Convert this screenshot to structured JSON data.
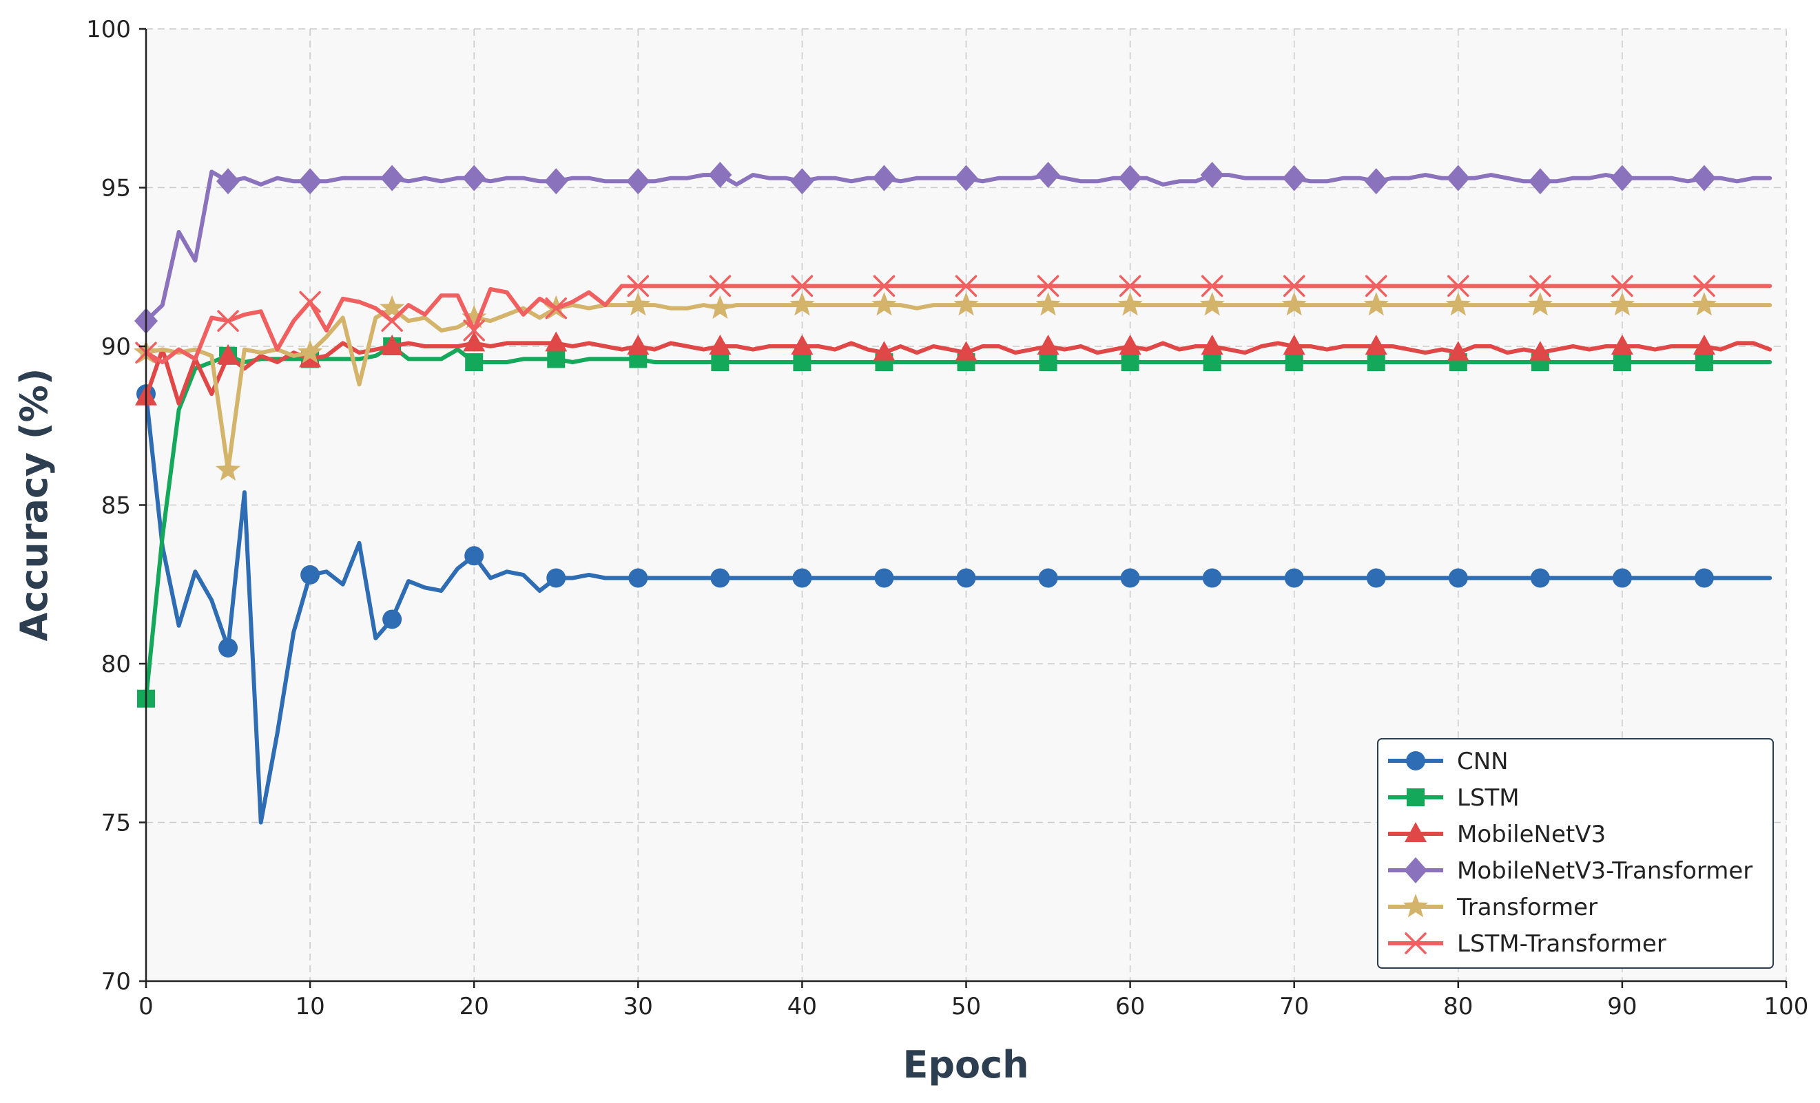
{
  "chart_data": {
    "type": "line",
    "title": "",
    "xlabel": "Epoch",
    "ylabel": "Accuracy (%)",
    "xlim": [
      0,
      100
    ],
    "ylim": [
      70,
      100
    ],
    "xticks": [
      0,
      10,
      20,
      30,
      40,
      50,
      60,
      70,
      80,
      90,
      100
    ],
    "yticks": [
      70,
      75,
      80,
      85,
      90,
      95,
      100
    ],
    "grid": true,
    "legend_position": "bottom-right",
    "marker_every": 5,
    "series": [
      {
        "name": "CNN",
        "color": "#2e6db4",
        "marker": "circle",
        "values": [
          88.5,
          83.7,
          81.2,
          82.9,
          82.0,
          80.5,
          85.4,
          75.0,
          77.8,
          81.0,
          82.8,
          82.9,
          82.5,
          83.8,
          80.8,
          81.4,
          82.6,
          82.4,
          82.3,
          83.0,
          83.4,
          82.7,
          82.9,
          82.8,
          82.3,
          82.7,
          82.7,
          82.8,
          82.7,
          82.7,
          82.7,
          82.7,
          82.7,
          82.7,
          82.7,
          82.7,
          82.7,
          82.7,
          82.7,
          82.7,
          82.7,
          82.7,
          82.7,
          82.7,
          82.7,
          82.7,
          82.7,
          82.7,
          82.7,
          82.7,
          82.7,
          82.7,
          82.7,
          82.7,
          82.7,
          82.7,
          82.7,
          82.7,
          82.7,
          82.7,
          82.7,
          82.7,
          82.7,
          82.7,
          82.7,
          82.7,
          82.7,
          82.7,
          82.7,
          82.7,
          82.7,
          82.7,
          82.7,
          82.7,
          82.7,
          82.7,
          82.7,
          82.7,
          82.7,
          82.7,
          82.7,
          82.7,
          82.7,
          82.7,
          82.7,
          82.7,
          82.7,
          82.7,
          82.7,
          82.7,
          82.7,
          82.7,
          82.7,
          82.7,
          82.7,
          82.7,
          82.7,
          82.7,
          82.7,
          82.7
        ]
      },
      {
        "name": "LSTM",
        "color": "#14a85a",
        "marker": "square",
        "values": [
          78.9,
          84.0,
          88.0,
          89.3,
          89.5,
          89.7,
          89.5,
          89.6,
          89.6,
          89.6,
          89.6,
          89.6,
          89.6,
          89.6,
          89.7,
          90.0,
          89.6,
          89.6,
          89.6,
          89.9,
          89.5,
          89.5,
          89.5,
          89.6,
          89.6,
          89.6,
          89.5,
          89.6,
          89.6,
          89.6,
          89.6,
          89.5,
          89.5,
          89.5,
          89.5,
          89.5,
          89.5,
          89.5,
          89.5,
          89.5,
          89.5,
          89.5,
          89.5,
          89.5,
          89.5,
          89.5,
          89.5,
          89.5,
          89.5,
          89.5,
          89.5,
          89.5,
          89.5,
          89.5,
          89.5,
          89.5,
          89.5,
          89.5,
          89.5,
          89.5,
          89.5,
          89.5,
          89.5,
          89.5,
          89.5,
          89.5,
          89.5,
          89.5,
          89.5,
          89.5,
          89.5,
          89.5,
          89.5,
          89.5,
          89.5,
          89.5,
          89.5,
          89.5,
          89.5,
          89.5,
          89.5,
          89.5,
          89.5,
          89.5,
          89.5,
          89.5,
          89.5,
          89.5,
          89.5,
          89.5,
          89.5,
          89.5,
          89.5,
          89.5,
          89.5,
          89.5,
          89.5,
          89.5,
          89.5,
          89.5
        ]
      },
      {
        "name": "MobileNetV3",
        "color": "#e04848",
        "marker": "triangle",
        "values": [
          88.4,
          89.9,
          88.2,
          89.6,
          88.5,
          89.7,
          89.3,
          89.7,
          89.5,
          89.8,
          89.6,
          89.7,
          90.1,
          89.8,
          89.9,
          90.0,
          90.1,
          90.0,
          90.0,
          90.0,
          90.1,
          90.0,
          90.1,
          90.1,
          90.1,
          90.1,
          90.0,
          90.1,
          90.0,
          89.9,
          90.0,
          89.9,
          90.1,
          90.0,
          89.9,
          90.0,
          90.0,
          89.9,
          90.0,
          90.0,
          90.0,
          90.0,
          89.9,
          90.1,
          89.9,
          89.8,
          90.0,
          89.8,
          90.0,
          89.9,
          89.8,
          90.0,
          90.0,
          89.8,
          89.9,
          90.0,
          89.9,
          90.0,
          89.8,
          89.9,
          90.0,
          89.9,
          90.1,
          89.9,
          90.0,
          90.0,
          89.9,
          89.8,
          90.0,
          90.1,
          90.0,
          90.0,
          89.9,
          90.0,
          90.0,
          90.0,
          90.0,
          89.9,
          89.8,
          89.9,
          89.8,
          90.0,
          90.0,
          89.8,
          89.9,
          89.8,
          89.9,
          90.0,
          89.9,
          90.0,
          90.0,
          90.0,
          89.9,
          90.0,
          90.0,
          90.0,
          89.9,
          90.1,
          90.1,
          89.9
        ]
      },
      {
        "name": "MobileNetV3-Transformer",
        "color": "#8a72bd",
        "marker": "diamond",
        "values": [
          90.8,
          91.3,
          93.6,
          92.7,
          95.5,
          95.2,
          95.3,
          95.1,
          95.3,
          95.2,
          95.2,
          95.2,
          95.3,
          95.3,
          95.3,
          95.3,
          95.2,
          95.3,
          95.2,
          95.3,
          95.3,
          95.2,
          95.3,
          95.3,
          95.2,
          95.2,
          95.3,
          95.3,
          95.2,
          95.2,
          95.2,
          95.2,
          95.3,
          95.3,
          95.4,
          95.4,
          95.1,
          95.4,
          95.3,
          95.3,
          95.2,
          95.3,
          95.3,
          95.2,
          95.3,
          95.3,
          95.2,
          95.3,
          95.3,
          95.3,
          95.3,
          95.2,
          95.3,
          95.3,
          95.3,
          95.4,
          95.3,
          95.2,
          95.2,
          95.3,
          95.3,
          95.3,
          95.1,
          95.2,
          95.2,
          95.4,
          95.4,
          95.3,
          95.3,
          95.3,
          95.3,
          95.2,
          95.2,
          95.3,
          95.3,
          95.2,
          95.3,
          95.3,
          95.4,
          95.3,
          95.3,
          95.3,
          95.4,
          95.3,
          95.2,
          95.2,
          95.2,
          95.3,
          95.3,
          95.4,
          95.3,
          95.3,
          95.3,
          95.3,
          95.2,
          95.3,
          95.3,
          95.2,
          95.3,
          95.3
        ]
      },
      {
        "name": "Transformer",
        "color": "#d4b46a",
        "marker": "star",
        "values": [
          89.8,
          89.9,
          89.8,
          89.9,
          89.7,
          86.1,
          89.9,
          89.8,
          89.9,
          89.7,
          89.8,
          90.3,
          90.9,
          88.8,
          90.9,
          91.2,
          90.8,
          90.9,
          90.5,
          90.6,
          90.9,
          90.8,
          91.0,
          91.2,
          90.9,
          91.2,
          91.3,
          91.2,
          91.3,
          91.3,
          91.3,
          91.3,
          91.2,
          91.2,
          91.3,
          91.2,
          91.3,
          91.3,
          91.3,
          91.3,
          91.3,
          91.3,
          91.3,
          91.3,
          91.3,
          91.3,
          91.3,
          91.2,
          91.3,
          91.3,
          91.3,
          91.3,
          91.3,
          91.3,
          91.3,
          91.3,
          91.3,
          91.3,
          91.3,
          91.3,
          91.3,
          91.3,
          91.3,
          91.3,
          91.3,
          91.3,
          91.3,
          91.3,
          91.3,
          91.3,
          91.3,
          91.3,
          91.3,
          91.3,
          91.3,
          91.3,
          91.3,
          91.3,
          91.3,
          91.3,
          91.3,
          91.3,
          91.3,
          91.3,
          91.3,
          91.3,
          91.3,
          91.3,
          91.3,
          91.3,
          91.3,
          91.3,
          91.3,
          91.3,
          91.3,
          91.3,
          91.3,
          91.3,
          91.3,
          91.3
        ]
      },
      {
        "name": "LSTM-Transformer",
        "color": "#f06060",
        "marker": "x",
        "values": [
          89.8,
          89.5,
          89.9,
          89.6,
          90.9,
          90.8,
          91.0,
          91.1,
          89.9,
          90.8,
          91.4,
          90.5,
          91.5,
          91.4,
          91.2,
          90.8,
          91.3,
          91.0,
          91.6,
          91.6,
          90.5,
          91.8,
          91.7,
          91.0,
          91.5,
          91.2,
          91.4,
          91.7,
          91.3,
          91.9,
          91.9,
          91.9,
          91.9,
          91.9,
          91.9,
          91.9,
          91.9,
          91.9,
          91.9,
          91.9,
          91.9,
          91.9,
          91.9,
          91.9,
          91.9,
          91.9,
          91.9,
          91.9,
          91.9,
          91.9,
          91.9,
          91.9,
          91.9,
          91.9,
          91.9,
          91.9,
          91.9,
          91.9,
          91.9,
          91.9,
          91.9,
          91.9,
          91.9,
          91.9,
          91.9,
          91.9,
          91.9,
          91.9,
          91.9,
          91.9,
          91.9,
          91.9,
          91.9,
          91.9,
          91.9,
          91.9,
          91.9,
          91.9,
          91.9,
          91.9,
          91.9,
          91.9,
          91.9,
          91.9,
          91.9,
          91.9,
          91.9,
          91.9,
          91.9,
          91.9,
          91.9,
          91.9,
          91.9,
          91.9,
          91.9,
          91.9,
          91.9,
          91.9,
          91.9,
          91.9
        ]
      }
    ]
  }
}
